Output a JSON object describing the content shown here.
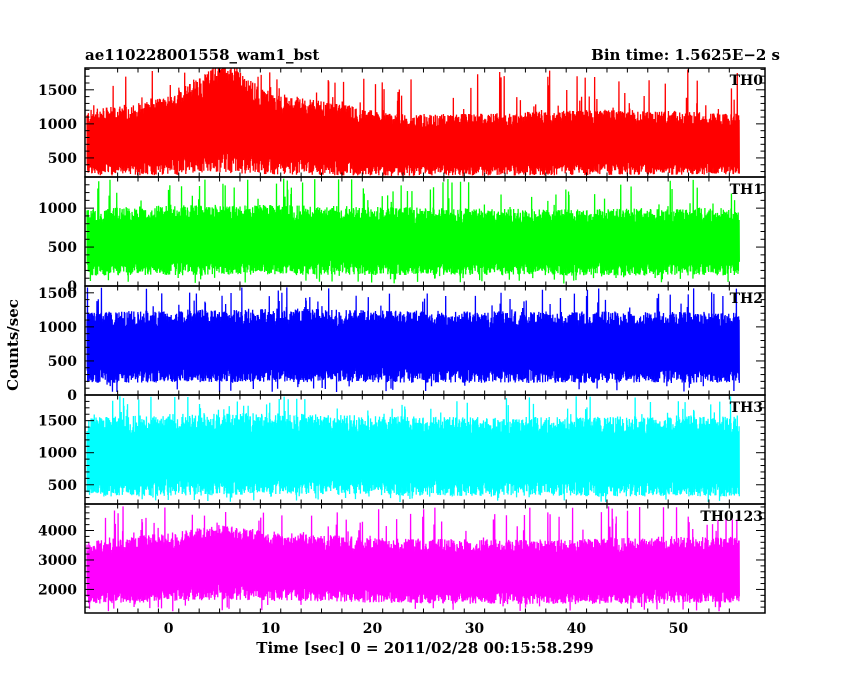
{
  "chart_data": {
    "type": "line",
    "title_left": "ae110228001558_wam1_bst",
    "title_right": "Bin time: 1.5625E−2 s",
    "ylabel": "Counts/sec",
    "xlabel": "Time [sec] 0 = 2011/02/28 00:15:58.299",
    "xlim": [
      -8.2,
      58.5
    ],
    "data_x_range": [
      -8.0,
      56.0
    ],
    "xticks": [
      0,
      10,
      20,
      30,
      40,
      50
    ],
    "grid": false,
    "panels": [
      {
        "name": "TH0",
        "color": "#ff0000",
        "ylim": [
          220,
          1820
        ],
        "yticks": [
          500,
          1000,
          1500
        ],
        "profile": {
          "t": [
            -8,
            -4,
            0,
            2,
            4,
            5,
            6,
            7,
            8,
            10,
            14,
            18,
            22,
            30,
            40,
            50,
            56
          ],
          "upper": [
            1050,
            1120,
            1230,
            1380,
            1550,
            1680,
            1650,
            1550,
            1420,
            1280,
            1180,
            1100,
            1000,
            1000,
            1060,
            1040,
            1000
          ],
          "lower": [
            380,
            380,
            400,
            440,
            480,
            500,
            500,
            480,
            450,
            420,
            400,
            380,
            360,
            360,
            380,
            380,
            380
          ],
          "spike_max": 1800,
          "spike_min": 250
        }
      },
      {
        "name": "TH1",
        "color": "#00ff00",
        "ylim": [
          0,
          1400
        ],
        "yticks": [
          0,
          500,
          1000
        ],
        "profile": {
          "t": [
            -8,
            0,
            10,
            20,
            30,
            40,
            50,
            56
          ],
          "upper": [
            850,
            900,
            900,
            880,
            860,
            850,
            870,
            860
          ],
          "lower": [
            250,
            260,
            270,
            260,
            250,
            250,
            250,
            250
          ],
          "spike_max": 1380,
          "spike_min": 30
        }
      },
      {
        "name": "TH2",
        "color": "#0000ff",
        "ylim": [
          0,
          1600
        ],
        "yticks": [
          0,
          500,
          1000,
          1500
        ],
        "profile": {
          "t": [
            -8,
            0,
            10,
            20,
            30,
            40,
            50,
            56
          ],
          "upper": [
            1050,
            1080,
            1100,
            1080,
            1060,
            1060,
            1060,
            1050
          ],
          "lower": [
            320,
            330,
            340,
            330,
            320,
            320,
            320,
            320
          ],
          "spike_max": 1580,
          "spike_min": 40
        }
      },
      {
        "name": "TH3",
        "color": "#00ffff",
        "ylim": [
          200,
          1900
        ],
        "yticks": [
          500,
          1000,
          1500
        ],
        "profile": {
          "t": [
            -8,
            0,
            10,
            20,
            30,
            40,
            50,
            56
          ],
          "upper": [
            1350,
            1400,
            1420,
            1380,
            1360,
            1360,
            1380,
            1380
          ],
          "lower": [
            480,
            500,
            520,
            500,
            490,
            490,
            490,
            490
          ],
          "spike_max": 1880,
          "spike_min": 230
        }
      },
      {
        "name": "TH0123",
        "color": "#ff00ff",
        "ylim": [
          1200,
          4900
        ],
        "yticks": [
          2000,
          3000,
          4000
        ],
        "profile": {
          "t": [
            -8,
            0,
            5,
            10,
            20,
            30,
            40,
            50,
            56
          ],
          "upper": [
            3300,
            3550,
            3800,
            3600,
            3400,
            3350,
            3350,
            3450,
            3400
          ],
          "lower": [
            1800,
            1900,
            2000,
            1950,
            1850,
            1800,
            1800,
            1850,
            1850
          ],
          "spike_max": 4820,
          "spike_min": 1250
        }
      }
    ]
  }
}
